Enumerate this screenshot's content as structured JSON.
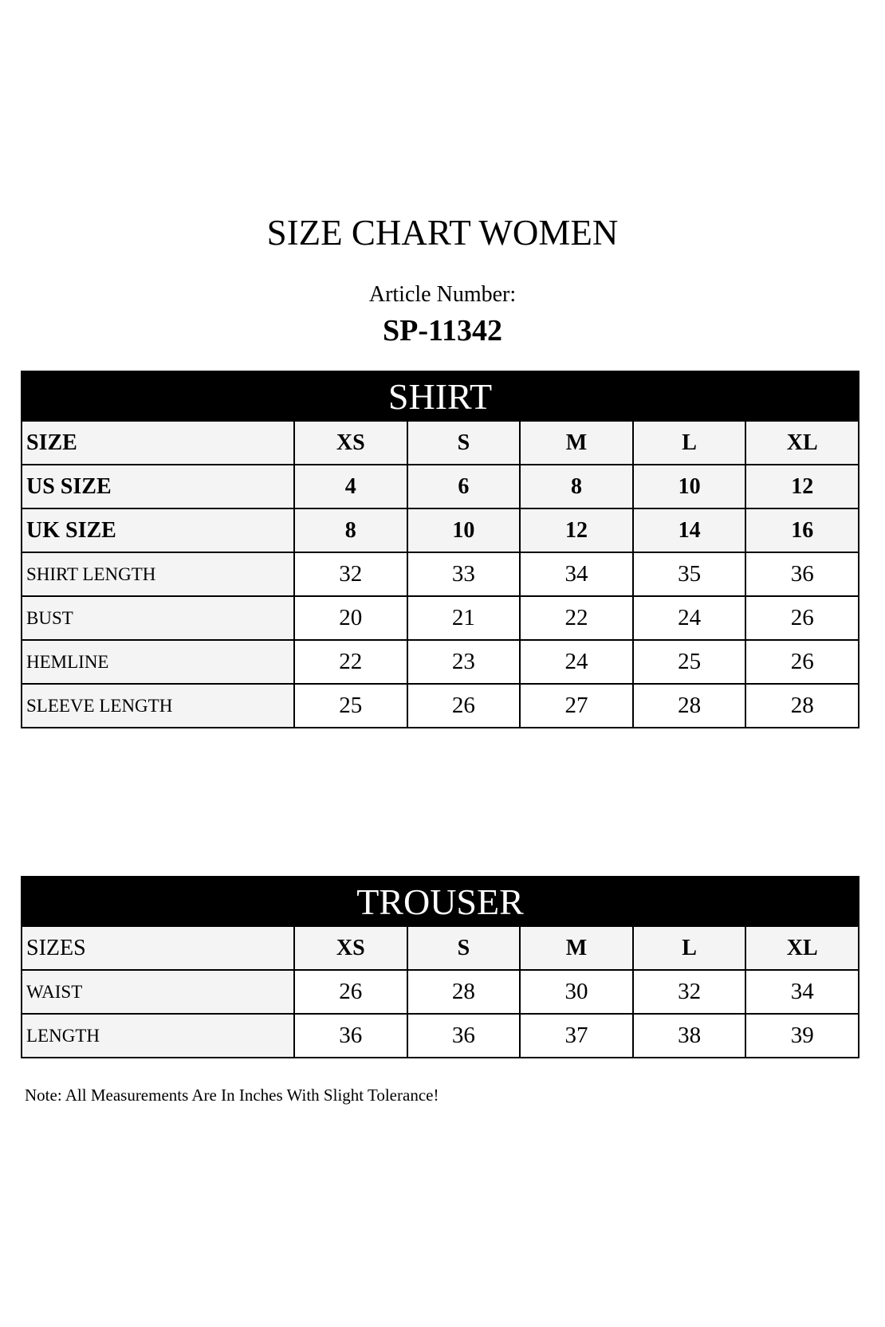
{
  "title": "SIZE CHART WOMEN",
  "article_label": "Article Number:",
  "article_number": "SP-11342",
  "shirt": {
    "heading": "SHIRT",
    "rows": [
      {
        "label": "SIZE",
        "values": [
          "XS",
          "S",
          "M",
          "L",
          "XL"
        ]
      },
      {
        "label": "US SIZE",
        "values": [
          "4",
          "6",
          "8",
          "10",
          "12"
        ]
      },
      {
        "label": "UK SIZE",
        "values": [
          "8",
          "10",
          "12",
          "14",
          "16"
        ]
      },
      {
        "label": "SHIRT LENGTH",
        "values": [
          "32",
          "33",
          "34",
          "35",
          "36"
        ]
      },
      {
        "label": "BUST",
        "values": [
          "20",
          "21",
          "22",
          "24",
          "26"
        ]
      },
      {
        "label": "HEMLINE",
        "values": [
          "22",
          "23",
          "24",
          "25",
          "26"
        ]
      },
      {
        "label": "SLEEVE LENGTH",
        "values": [
          "25",
          "26",
          "27",
          "28",
          "28"
        ]
      }
    ]
  },
  "trouser": {
    "heading": "TROUSER",
    "rows": [
      {
        "label": "SIZES",
        "values": [
          "XS",
          "S",
          "M",
          "L",
          "XL"
        ]
      },
      {
        "label": "WAIST",
        "values": [
          "26",
          "28",
          "30",
          "32",
          "34"
        ]
      },
      {
        "label": "LENGTH",
        "values": [
          "36",
          "36",
          "37",
          "38",
          "39"
        ]
      }
    ]
  },
  "note": "Note: All Measurements Are In Inches With Slight Tolerance!"
}
